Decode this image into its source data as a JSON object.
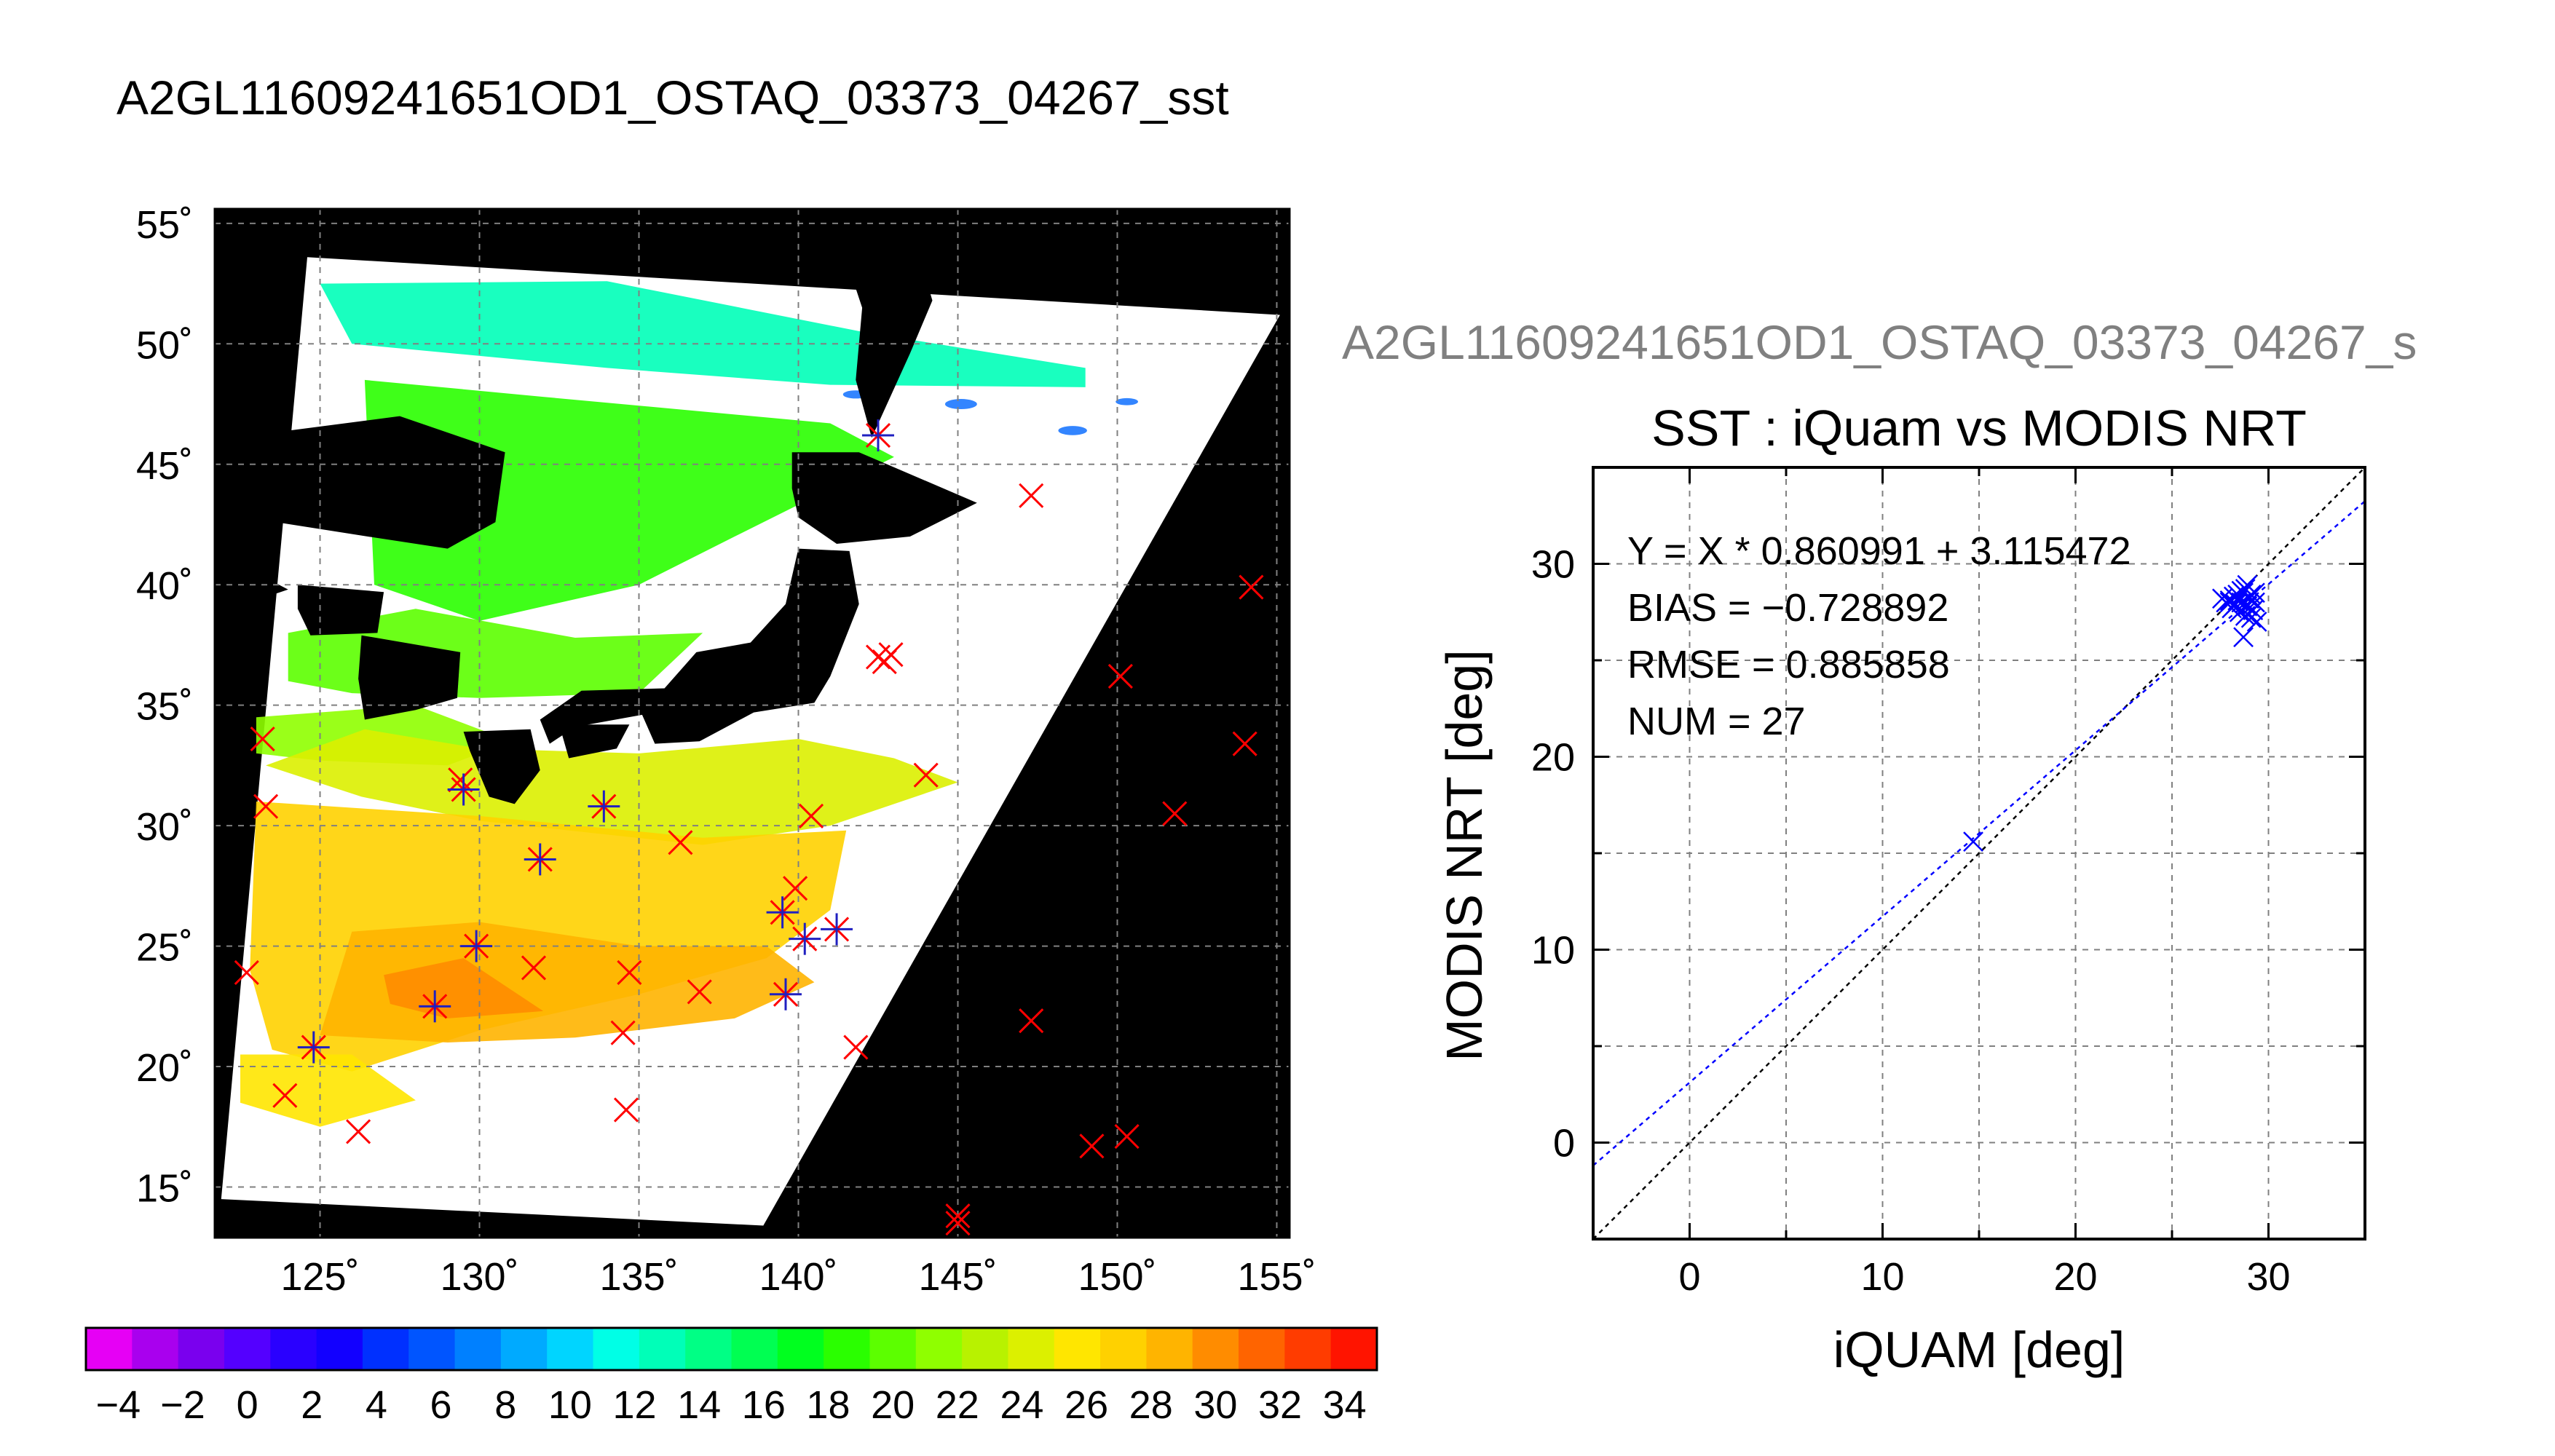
{
  "page": {
    "title": "A2GL11609241651OD1_OSTAQ_03373_04267_sst",
    "subtitle": "A2GL11609241651OD1_OSTAQ_03373_04267_s"
  },
  "chart_data": [
    {
      "type": "heatmap",
      "description_source": "SST swath map",
      "x_ticks": [
        "125˚",
        "130˚",
        "135˚",
        "140˚",
        "145˚",
        "150˚",
        "155˚"
      ],
      "y_ticks": [
        "15˚",
        "20˚",
        "25˚",
        "30˚",
        "35˚",
        "40˚",
        "45˚",
        "50˚",
        "55˚"
      ],
      "xlim": [
        121.7,
        155.4
      ],
      "ylim": [
        12.9,
        55.6
      ],
      "grid": true,
      "swath_corners": {
        "nw": [
          124.6,
          53.6
        ],
        "ne": [
          155.1,
          51.2
        ],
        "se": [
          138.9,
          13.4
        ],
        "sw": [
          121.9,
          14.5
        ]
      },
      "colorbar": {
        "min": -5,
        "max": 35,
        "tick_labels": [
          "−4",
          "−2",
          "0",
          "2",
          "4",
          "6",
          "8",
          "10",
          "12",
          "14",
          "16",
          "18",
          "20",
          "22",
          "24",
          "26",
          "28",
          "30",
          "32",
          "34"
        ],
        "colors": [
          "#e600f5",
          "#a900ee",
          "#7a00ee",
          "#5400ff",
          "#2a00ff",
          "#1200ff",
          "#0030ff",
          "#0055ff",
          "#0080ff",
          "#00aaff",
          "#00d5ff",
          "#00ffe6",
          "#00ffb8",
          "#00ff85",
          "#00ff52",
          "#00ff1f",
          "#2aff00",
          "#5cff00",
          "#8fff00",
          "#b8f200",
          "#dcf000",
          "#ffe600",
          "#ffd100",
          "#ffb400",
          "#ff8c00",
          "#ff6400",
          "#ff3c00",
          "#ff1400"
        ]
      },
      "red_x_markers": [
        [
          122.7,
          23.9
        ],
        [
          123.2,
          33.6
        ],
        [
          123.3,
          30.8
        ],
        [
          123.9,
          18.8
        ],
        [
          124.8,
          20.8
        ],
        [
          126.2,
          17.3
        ],
        [
          128.6,
          22.5
        ],
        [
          129.4,
          31.9
        ],
        [
          129.5,
          31.5
        ],
        [
          129.9,
          25.0
        ],
        [
          131.7,
          24.1
        ],
        [
          131.9,
          28.6
        ],
        [
          133.9,
          30.8
        ],
        [
          134.5,
          21.4
        ],
        [
          134.6,
          18.2
        ],
        [
          134.7,
          23.9
        ],
        [
          136.3,
          29.3
        ],
        [
          136.9,
          23.1
        ],
        [
          139.5,
          26.4
        ],
        [
          139.6,
          23.0
        ],
        [
          139.9,
          27.4
        ],
        [
          140.2,
          25.3
        ],
        [
          140.4,
          30.4
        ],
        [
          141.2,
          25.7
        ],
        [
          141.8,
          20.8
        ],
        [
          142.5,
          46.2
        ],
        [
          142.5,
          37.0
        ],
        [
          142.7,
          36.8
        ],
        [
          142.9,
          37.1
        ],
        [
          144.0,
          32.1
        ],
        [
          145.0,
          13.8
        ],
        [
          145.0,
          13.5
        ],
        [
          147.3,
          21.9
        ],
        [
          147.3,
          43.7
        ],
        [
          149.2,
          16.7
        ],
        [
          150.1,
          36.2
        ],
        [
          150.3,
          17.1
        ],
        [
          151.8,
          30.5
        ],
        [
          154.0,
          33.4
        ],
        [
          154.2,
          39.9
        ]
      ],
      "blue_plus_markers": [
        [
          124.8,
          20.8
        ],
        [
          128.6,
          22.5
        ],
        [
          129.5,
          31.5
        ],
        [
          129.9,
          25.0
        ],
        [
          131.9,
          28.6
        ],
        [
          133.9,
          30.8
        ],
        [
          139.5,
          26.4
        ],
        [
          139.6,
          23.0
        ],
        [
          140.2,
          25.3
        ],
        [
          141.2,
          25.7
        ],
        [
          142.5,
          46.2
        ]
      ]
    },
    {
      "type": "scatter",
      "title": "SST : iQuam vs MODIS NRT",
      "xlabel": "iQUAM [deg]",
      "ylabel": "MODIS NRT [deg]",
      "xlim": [
        -5,
        35
      ],
      "ylim": [
        -5,
        35
      ],
      "x_ticks": [
        0,
        10,
        20,
        30
      ],
      "y_ticks": [
        0,
        10,
        20,
        30
      ],
      "grid": true,
      "annotations": [
        "Y = X * 0.860991 + 3.115472",
        "BIAS = −0.728892",
        "RMSE = 0.885858",
        "NUM = 27"
      ],
      "fit": {
        "slope": 0.860991,
        "intercept": 3.115472,
        "color": "#0000ff"
      },
      "identity_line_color": "#000000",
      "points": [
        [
          14.7,
          15.6
        ],
        [
          27.6,
          28.2
        ],
        [
          27.8,
          28.0
        ],
        [
          28.0,
          28.1
        ],
        [
          28.1,
          27.7
        ],
        [
          28.2,
          28.3
        ],
        [
          28.3,
          27.9
        ],
        [
          28.4,
          28.4
        ],
        [
          28.5,
          27.5
        ],
        [
          28.6,
          28.0
        ],
        [
          28.7,
          28.5
        ],
        [
          28.8,
          27.3
        ],
        [
          28.8,
          28.7
        ],
        [
          28.9,
          27.8
        ],
        [
          29.0,
          28.2
        ],
        [
          29.1,
          28.4
        ],
        [
          29.2,
          27.6
        ],
        [
          29.3,
          28.0
        ],
        [
          29.4,
          27.0
        ],
        [
          28.7,
          26.2
        ],
        [
          28.0,
          28.0
        ],
        [
          28.6,
          28.6
        ],
        [
          28.9,
          28.9
        ],
        [
          29.1,
          27.2
        ],
        [
          28.4,
          28.1
        ],
        [
          28.9,
          27.9
        ],
        [
          29.3,
          28.5
        ]
      ]
    }
  ]
}
